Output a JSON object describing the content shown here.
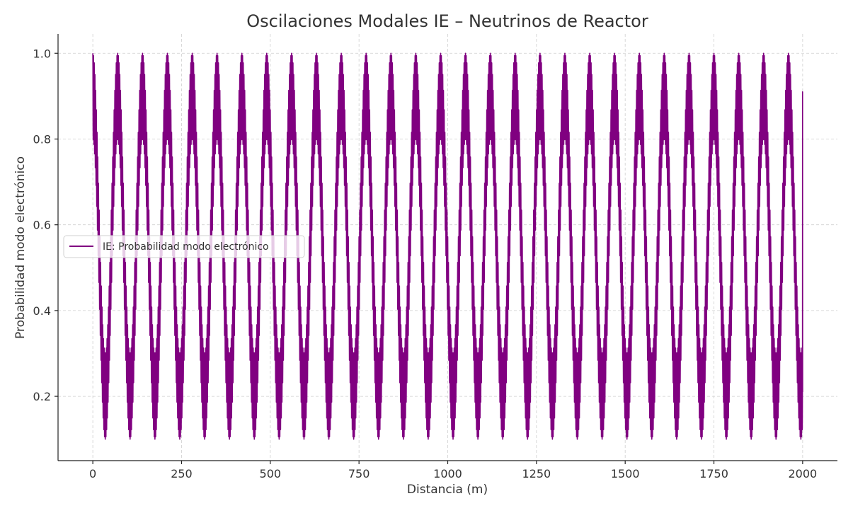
{
  "chart_data": {
    "type": "line",
    "title": "Oscilaciones Modales IE – Neutrinos de Reactor",
    "xlabel": "Distancia (m)",
    "ylabel": "Probabilidad modo electrónico",
    "xlim": [
      -98,
      2098
    ],
    "ylim": [
      0.05,
      1.045
    ],
    "xticks": [
      0,
      250,
      500,
      750,
      1000,
      1250,
      1500,
      1750,
      2000
    ],
    "xtick_labels": [
      "0",
      "250",
      "500",
      "750",
      "1000",
      "1250",
      "1500",
      "1750",
      "2000"
    ],
    "yticks": [
      0.2,
      0.4,
      0.6,
      0.8,
      1.0
    ],
    "ytick_labels": [
      "0.2",
      "0.4",
      "0.6",
      "0.8",
      "1.0"
    ],
    "grid": true,
    "legend_placement": "center-left",
    "series": [
      {
        "name": "IE: Probabilidad modo electrónico",
        "color": "#800080",
        "x_range": [
          0,
          2000
        ],
        "center": 0.55,
        "fast_amplitude": 0.1,
        "fast_period_m": 2.0,
        "beat_amplitude": 0.35,
        "beat_period_m": 70,
        "min": 0.1,
        "max": 1.0,
        "end_range": [
          0.21,
          0.91
        ]
      }
    ]
  }
}
